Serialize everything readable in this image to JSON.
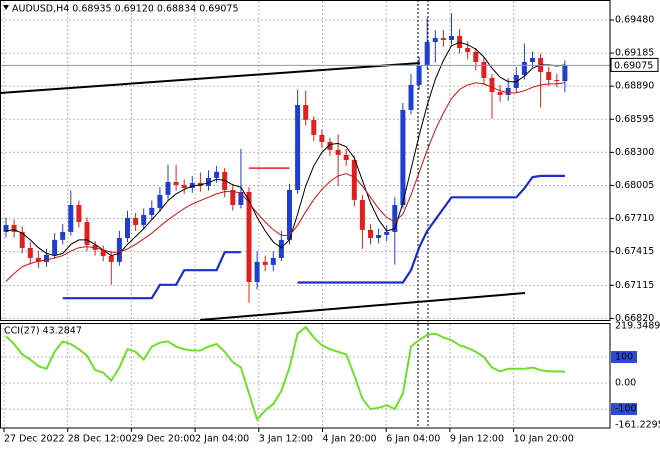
{
  "chart_data": [
    {
      "type": "candlestick",
      "title": "AUDUSD,H4  0.68935 0.69120 0.68834 0.69075",
      "up_color": "#1f3fd0",
      "down_color": "#e02020",
      "ylim": [
        0.66806,
        0.69658
      ],
      "yticks": [
        {
          "value": 0.6682,
          "label": "0.66820"
        },
        0.67115,
        0.67415,
        {
          "value": 0.6771,
          "label": "0.67710"
        },
        0.68005,
        {
          "value": 0.683,
          "label": "0.68300"
        },
        0.68595,
        {
          "value": 0.6889,
          "label": "0.68890"
        },
        0.69185,
        {
          "value": 0.6948,
          "label": "0.69480"
        }
      ],
      "grid": true,
      "xtick_labels": [
        "27 Dec 2022",
        "28 Dec 12:00",
        "29 Dec 20:00",
        "2 Jan 04:00",
        "3 Jan 12:00",
        "4 Jan 20:00",
        "6 Jan 04:00",
        "9 Jan 12:00",
        "10 Jan 20:00"
      ],
      "open": [
        0.67591,
        0.67653,
        0.67591,
        0.67448,
        0.67359,
        0.67324,
        0.67386,
        0.6752,
        0.67591,
        0.67831,
        0.6768,
        0.67475,
        0.67431,
        0.67377,
        0.67324,
        0.67537,
        0.67716,
        0.67653,
        0.67742,
        0.67805,
        0.67921,
        0.68036,
        0.6801,
        0.67983,
        0.68027,
        0.68001,
        0.68072,
        0.68126,
        0.67965,
        0.67831,
        0.67947,
        0.67145,
        0.67324,
        0.67297,
        0.67359,
        0.6752,
        0.67965,
        0.68722,
        0.68589,
        0.68455,
        0.68393,
        0.68322,
        0.68277,
        0.68232,
        0.67876,
        0.67609,
        0.67537,
        0.67564,
        0.67591,
        0.67831,
        0.68678,
        0.68901,
        0.69079,
        0.69284,
        0.69319,
        0.69302,
        0.69337,
        0.6923,
        0.69195,
        0.69106,
        0.68963,
        0.68838,
        0.68812,
        0.68874,
        0.6899,
        0.69106,
        0.69141,
        0.69017,
        0.68945,
        0.68935
      ],
      "high": [
        0.6772,
        0.677,
        0.6764,
        0.675,
        0.6742,
        0.6744,
        0.6758,
        0.6766,
        0.6796,
        0.6787,
        0.6772,
        0.6751,
        0.6747,
        0.6742,
        0.676,
        0.6778,
        0.6776,
        0.678,
        0.6787,
        0.6799,
        0.6819,
        0.6819,
        0.6806,
        0.6809,
        0.6812,
        0.6814,
        0.6818,
        0.6816,
        0.6802,
        0.6833,
        0.6799,
        0.6742,
        0.6738,
        0.6742,
        0.676,
        0.6802,
        0.6886,
        0.6885,
        0.6862,
        0.685,
        0.6843,
        0.6846,
        0.6833,
        0.6827,
        0.6792,
        0.6766,
        0.6762,
        0.6765,
        0.679,
        0.6874,
        0.69,
        0.6915,
        0.695,
        0.6939,
        0.6939,
        0.6954,
        0.694,
        0.6929,
        0.6923,
        0.6915,
        0.69,
        0.689,
        0.6896,
        0.6906,
        0.6927,
        0.692,
        0.6918,
        0.6906,
        0.69,
        0.6912
      ],
      "low": [
        0.6754,
        0.6754,
        0.674,
        0.673,
        0.6727,
        0.6728,
        0.6735,
        0.6748,
        0.6756,
        0.6763,
        0.6742,
        0.6738,
        0.6733,
        0.6712,
        0.6729,
        0.675,
        0.676,
        0.6761,
        0.677,
        0.6777,
        0.6788,
        0.6796,
        0.6793,
        0.6794,
        0.6795,
        0.6796,
        0.6803,
        0.679,
        0.6778,
        0.678,
        0.6696,
        0.6708,
        0.6724,
        0.6724,
        0.6733,
        0.6748,
        0.6793,
        0.6854,
        0.684,
        0.6834,
        0.6827,
        0.68,
        0.6818,
        0.6782,
        0.6744,
        0.6748,
        0.6749,
        0.6751,
        0.673,
        0.678,
        0.6864,
        0.6886,
        0.6904,
        0.691,
        0.6924,
        0.6926,
        0.6918,
        0.6913,
        0.6903,
        0.689,
        0.686,
        0.6875,
        0.6876,
        0.6883,
        0.6895,
        0.6906,
        0.687,
        0.6889,
        0.6888,
        0.68834
      ],
      "close": [
        0.67653,
        0.67591,
        0.67448,
        0.67359,
        0.67324,
        0.67386,
        0.6752,
        0.67591,
        0.67831,
        0.6768,
        0.67475,
        0.67431,
        0.67377,
        0.67324,
        0.67537,
        0.67716,
        0.67653,
        0.67742,
        0.67805,
        0.67921,
        0.68036,
        0.6801,
        0.67983,
        0.68027,
        0.68001,
        0.68072,
        0.68126,
        0.67965,
        0.67831,
        0.67947,
        0.67145,
        0.67324,
        0.67297,
        0.67359,
        0.6752,
        0.67965,
        0.68722,
        0.68589,
        0.68455,
        0.68393,
        0.68322,
        0.68277,
        0.68232,
        0.67876,
        0.67609,
        0.67537,
        0.67564,
        0.67591,
        0.67831,
        0.68678,
        0.68901,
        0.69079,
        0.69284,
        0.69319,
        0.69302,
        0.69337,
        0.6923,
        0.69195,
        0.69106,
        0.68963,
        0.68838,
        0.68812,
        0.68874,
        0.6899,
        0.69106,
        0.69141,
        0.69017,
        0.68945,
        0.68935,
        0.69075
      ],
      "lines": [
        {
          "color": "#000000",
          "width": 1,
          "values": [
            0.676,
            0.6761,
            0.6758,
            0.6752,
            0.6745,
            0.674,
            0.6738,
            0.674,
            0.6748,
            0.6752,
            0.6752,
            0.6748,
            0.6743,
            0.6738,
            0.674,
            0.6748,
            0.6755,
            0.6762,
            0.677,
            0.6778,
            0.6787,
            0.6793,
            0.6797,
            0.68,
            0.6801,
            0.6803,
            0.6806,
            0.6805,
            0.6801,
            0.6799,
            0.6787,
            0.6772,
            0.676,
            0.675,
            0.6745,
            0.6752,
            0.6775,
            0.68,
            0.6818,
            0.683,
            0.6837,
            0.6838,
            0.6835,
            0.6825,
            0.6805,
            0.6785,
            0.677,
            0.676,
            0.6762,
            0.6785,
            0.6815,
            0.6845,
            0.6872,
            0.6895,
            0.6912,
            0.6925,
            0.6928,
            0.6926,
            0.6922,
            0.6915,
            0.6905,
            0.6897,
            0.6893,
            0.6893,
            0.6898,
            0.6905,
            0.6908,
            0.6908,
            0.6907,
            0.6908
          ]
        },
        {
          "color": "#d01010",
          "width": 1,
          "values": [
            0.6715,
            0.6722,
            0.6728,
            0.6731,
            0.6733,
            0.6734,
            0.6736,
            0.6738,
            0.6742,
            0.6745,
            0.6746,
            0.6745,
            0.6743,
            0.6741,
            0.6741,
            0.6744,
            0.6748,
            0.6753,
            0.6758,
            0.6764,
            0.677,
            0.6775,
            0.678,
            0.6784,
            0.6787,
            0.679,
            0.6793,
            0.6795,
            0.6795,
            0.6794,
            0.6785,
            0.6776,
            0.6768,
            0.6761,
            0.6756,
            0.6756,
            0.6765,
            0.6777,
            0.6788,
            0.6797,
            0.6804,
            0.6809,
            0.6811,
            0.6808,
            0.68,
            0.679,
            0.678,
            0.6772,
            0.6768,
            0.6775,
            0.6792,
            0.6812,
            0.6832,
            0.685,
            0.6865,
            0.6878,
            0.6886,
            0.689,
            0.6892,
            0.6891,
            0.6888,
            0.6885,
            0.6883,
            0.6883,
            0.6885,
            0.6888,
            0.689,
            0.6891,
            0.6891,
            0.6892
          ]
        },
        {
          "color": "#1a2ecc",
          "width": 2.2,
          "values": [
            null,
            null,
            null,
            null,
            null,
            null,
            null,
            0.67,
            0.67,
            0.67,
            0.67,
            0.67,
            0.67,
            0.67,
            0.67,
            0.67,
            0.67,
            0.67,
            0.67,
            0.6712,
            0.6712,
            0.6712,
            0.6725,
            0.6725,
            0.6725,
            0.6725,
            0.6725,
            0.6741,
            0.6741,
            0.6741,
            null,
            null,
            null,
            null,
            null,
            null,
            0.6714,
            0.6714,
            0.6714,
            0.6714,
            0.6714,
            0.6714,
            0.6714,
            0.6714,
            0.6714,
            0.6714,
            0.6714,
            0.6714,
            0.6714,
            0.6714,
            0.6725,
            0.6745,
            0.676,
            0.677,
            0.678,
            0.679,
            0.679,
            0.679,
            0.679,
            0.679,
            0.679,
            0.679,
            0.679,
            0.679,
            0.6798,
            0.6808,
            0.6809,
            0.6809,
            0.6809,
            0.6809
          ]
        },
        {
          "color": "#e02020",
          "width": 1.5,
          "values": [
            null,
            null,
            null,
            null,
            null,
            null,
            null,
            null,
            null,
            null,
            null,
            null,
            null,
            null,
            null,
            null,
            null,
            null,
            null,
            null,
            null,
            null,
            null,
            null,
            null,
            null,
            null,
            null,
            null,
            null,
            0.6816,
            0.6816,
            0.6816,
            0.6816,
            0.6816,
            0.6816,
            null,
            null,
            null,
            null,
            null,
            null,
            null,
            null,
            null,
            null,
            null,
            null,
            null,
            null,
            null,
            null,
            null,
            null,
            null,
            null,
            null,
            null,
            null,
            null,
            null,
            null,
            null,
            null,
            null,
            null,
            null,
            null,
            null,
            null
          ]
        }
      ]
    },
    {
      "type": "line",
      "title": "CCI(27) 43.2847",
      "color": "#6fe02a",
      "ylim": [
        -161.2295,
        219.3489
      ],
      "yticks": [
        219.3489,
        100,
        {
          "value": 0,
          "label": "0.00"
        },
        -100,
        -161.2295
      ],
      "values": [
        180,
        150,
        110,
        90,
        65,
        55,
        120,
        160,
        150,
        130,
        105,
        50,
        40,
        10,
        60,
        130,
        120,
        90,
        140,
        155,
        160,
        140,
        130,
        125,
        125,
        140,
        150,
        120,
        80,
        60,
        -40,
        -140,
        -105,
        -80,
        -30,
        60,
        190,
        215,
        175,
        145,
        130,
        120,
        110,
        30,
        -60,
        -100,
        -95,
        -85,
        -100,
        -40,
        140,
        165,
        185,
        190,
        175,
        165,
        145,
        135,
        120,
        100,
        60,
        45,
        55,
        55,
        55,
        60,
        50,
        45,
        45,
        43.2847
      ]
    }
  ]
}
